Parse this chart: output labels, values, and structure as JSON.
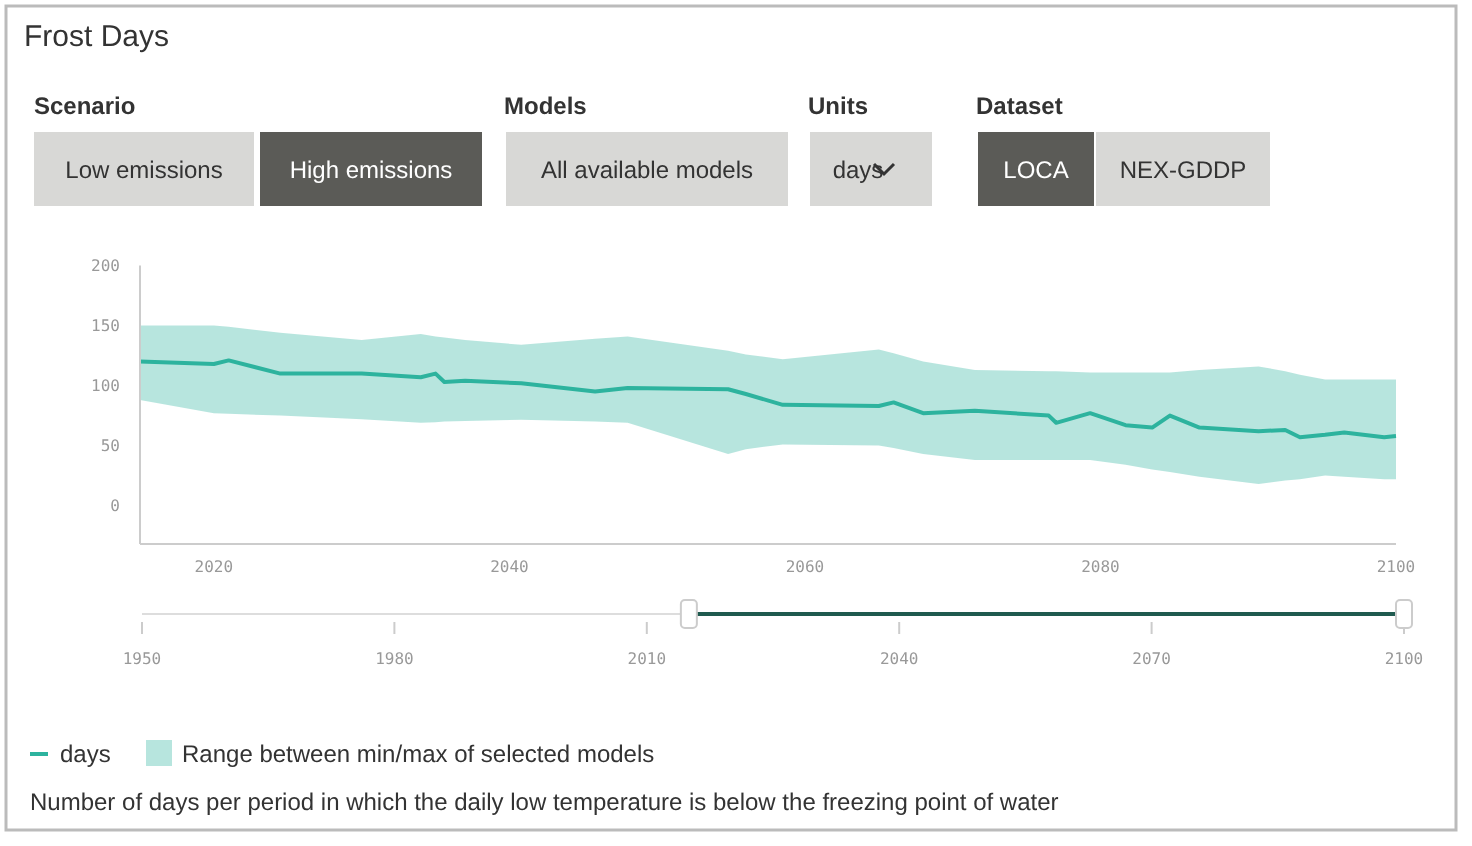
{
  "chart_data": {
    "type": "line",
    "title": "Frost Days",
    "xlim": [
      2015,
      2100
    ],
    "xticks": [
      2020,
      2040,
      2060,
      2080,
      2100
    ],
    "ylim": [
      -32,
      200
    ],
    "yticks": [
      200,
      150,
      100,
      50,
      0
    ],
    "x2lim": [
      1950,
      2100
    ],
    "x2ticks": [
      1950,
      1980,
      2010,
      2040,
      2070,
      2100
    ],
    "grid": false,
    "legend": "bottom left",
    "marker": "none",
    "line_style": "solid",
    "series": [
      {
        "name": "days",
        "color": "#2db39e",
        "x": [
          2015,
          2020,
          2021,
          2024.5,
          2030,
          2034,
          2035,
          2035.6,
          2037,
          2040.8,
          2045.8,
          2048,
          2054.8,
          2056,
          2058.5,
          2065,
          2066,
          2068,
          2071.5,
          2076.5,
          2077,
          2079.3,
          2081.7,
          2083.5,
          2084.7,
          2086.7,
          2090.7,
          2092.5,
          2093.5,
          2095.2,
          2096.5,
          2099.2,
          2100
        ],
        "values": [
          120,
          118,
          121,
          110,
          110,
          107,
          110,
          103,
          104,
          102,
          95,
          98,
          97,
          93,
          84,
          83,
          86,
          77,
          79,
          75,
          69,
          77,
          67,
          65,
          75,
          65,
          62,
          63,
          57,
          59,
          61,
          57,
          58
        ],
        "lower": [
          88,
          77,
          76.5,
          75,
          72,
          69,
          69.5,
          70,
          70.5,
          71.5,
          70,
          69,
          43,
          47,
          51,
          50,
          48,
          43,
          38,
          38,
          38,
          38,
          34,
          30,
          28,
          24,
          18,
          21,
          22,
          25,
          24,
          22,
          22
        ],
        "upper": [
          150,
          150,
          149,
          144,
          138,
          143,
          141,
          140,
          138,
          134,
          139,
          141,
          129,
          126,
          122,
          130,
          127,
          120,
          113,
          112,
          112,
          111,
          111,
          111,
          111,
          113,
          116,
          112,
          109,
          105,
          105,
          105,
          105
        ]
      }
    ],
    "annotations": [
      "Scenario",
      "Low emissions",
      "High emissions",
      "Models",
      "All available models",
      "Units",
      "days",
      "Dataset",
      "LOCA",
      "NEX-GDDP",
      "Range between min/max of selected models",
      "Number of days per period in which the daily low temperature is below the freezing point of water"
    ]
  }
}
